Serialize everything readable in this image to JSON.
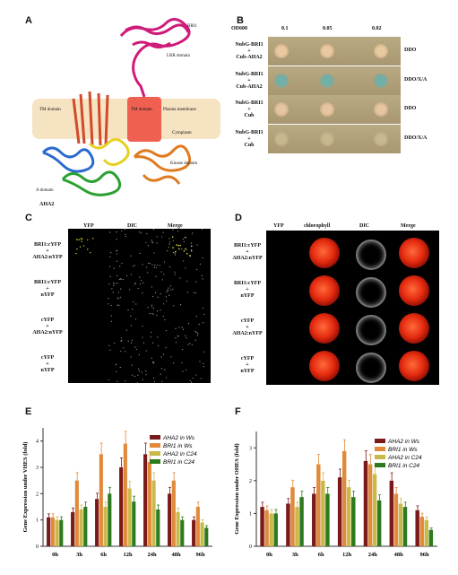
{
  "panels": {
    "A": {
      "label": "A",
      "struct_labels": {
        "bri1": "BRI1",
        "lrr": "LRR domain",
        "tm1": "TM domain",
        "tm2": "TM domain",
        "pm": "Plasma membrane",
        "cyto": "Cytoplasm",
        "kinase": "Kinase domain",
        "aha2": "AHA2",
        "a_domain": "A domain"
      }
    },
    "B": {
      "label": "B",
      "od_label": "OD600",
      "od_values": [
        "0.1",
        "0.05",
        "0.02"
      ],
      "rows": [
        {
          "name": "NubG-BRI1 + Cub-AHA2",
          "line1": "NubG-BRI1",
          "line2": "+",
          "line3": "Cub-AHA2",
          "medium": "DDO",
          "spot_color": "#e9c9a0"
        },
        {
          "name": "NubG-BRI1 + Cub-AHA2",
          "line1": "NubG-BRI1",
          "line2": "+",
          "line3": "Cub-AHA2",
          "medium": "DDO/X/A",
          "spot_color": "#6fb0a8"
        },
        {
          "name": "NubG-BRI1 + Cub",
          "line1": "NubG-BRI1",
          "line2": "+",
          "line3": "Cub",
          "medium": "DDO",
          "spot_color": "#e6c6a0"
        },
        {
          "name": "NubG-BRI1 + Cub",
          "line1": "NubG-BRI1",
          "line2": "+",
          "line3": "Cub",
          "medium": "DDO/X/A",
          "spot_color": "#c7b890"
        }
      ]
    },
    "C": {
      "label": "C",
      "cols": [
        "YFP",
        "DIC",
        "Merge"
      ],
      "rows": [
        {
          "a": "BRI1:cYFP",
          "b": "+",
          "c": "AHA2:nYFP"
        },
        {
          "a": "BRI1:cYFP",
          "b": "+",
          "c": "nYFP"
        },
        {
          "a": "cYFP",
          "b": "+",
          "c": "AHA2:nYFP"
        },
        {
          "a": "cYFP",
          "b": "+",
          "c": "nYFP"
        }
      ]
    },
    "D": {
      "label": "D",
      "cols": [
        "YFP",
        "chlorophyll",
        "DIC",
        "Merge"
      ],
      "rows": [
        {
          "a": "BRI1:cYFP",
          "b": "+",
          "c": "AHA2:nYFP"
        },
        {
          "a": "BRI1:cYFP",
          "b": "+",
          "c": "nYFP"
        },
        {
          "a": "cYFP",
          "b": "+",
          "c": "AHA2:nYFP"
        },
        {
          "a": "cYFP",
          "b": "+",
          "c": "nYFP"
        }
      ]
    },
    "E": {
      "label": "E"
    },
    "F": {
      "label": "F"
    }
  },
  "chart_data": [
    {
      "type": "bar",
      "panel": "E",
      "ylabel": "Gene Expression under VHES (fold)",
      "ylim": [
        0,
        4.5
      ],
      "yticks": [
        "0",
        "1",
        "2",
        "3",
        "4"
      ],
      "categories": [
        "0h",
        "3h",
        "6h",
        "12h",
        "24h",
        "48h",
        "96h"
      ],
      "series": [
        {
          "name": "AHA2 in Ws",
          "color": "#7a1a1a",
          "values": [
            1.1,
            1.3,
            1.8,
            3.0,
            3.5,
            2.0,
            1.0
          ]
        },
        {
          "name": "BRI1 in Ws",
          "color": "#e08a3a",
          "values": [
            1.1,
            2.5,
            3.5,
            3.9,
            3.2,
            2.5,
            1.5
          ]
        },
        {
          "name": "AHA2 in C24",
          "color": "#c9b94a",
          "values": [
            1.0,
            1.4,
            1.5,
            2.2,
            2.5,
            1.3,
            0.9
          ]
        },
        {
          "name": "BRI1 in C24",
          "color": "#2e7a1e",
          "values": [
            1.0,
            1.5,
            2.0,
            1.7,
            1.4,
            1.0,
            0.7
          ]
        }
      ]
    },
    {
      "type": "bar",
      "panel": "F",
      "ylabel": "Gene Expression under OHES (fold)",
      "ylim": [
        0,
        3.5
      ],
      "yticks": [
        "0",
        "1",
        "2",
        "3"
      ],
      "categories": [
        "0h",
        "3h",
        "6h",
        "12h",
        "24h",
        "48h",
        "96h"
      ],
      "series": [
        {
          "name": "AHA2 in Ws",
          "color": "#7a1a1a",
          "values": [
            1.2,
            1.3,
            1.6,
            2.1,
            2.6,
            2.0,
            1.1
          ]
        },
        {
          "name": "BRI1 in Ws",
          "color": "#e08a3a",
          "values": [
            1.1,
            1.8,
            2.5,
            2.9,
            2.5,
            1.6,
            0.9
          ]
        },
        {
          "name": "AHA2 in C24",
          "color": "#c9b94a",
          "values": [
            1.0,
            1.2,
            2.0,
            1.8,
            2.2,
            1.3,
            0.8
          ]
        },
        {
          "name": "BRI1 in C24",
          "color": "#2e7a1e",
          "values": [
            1.0,
            1.5,
            1.6,
            1.5,
            1.4,
            1.2,
            0.5
          ]
        }
      ]
    }
  ]
}
